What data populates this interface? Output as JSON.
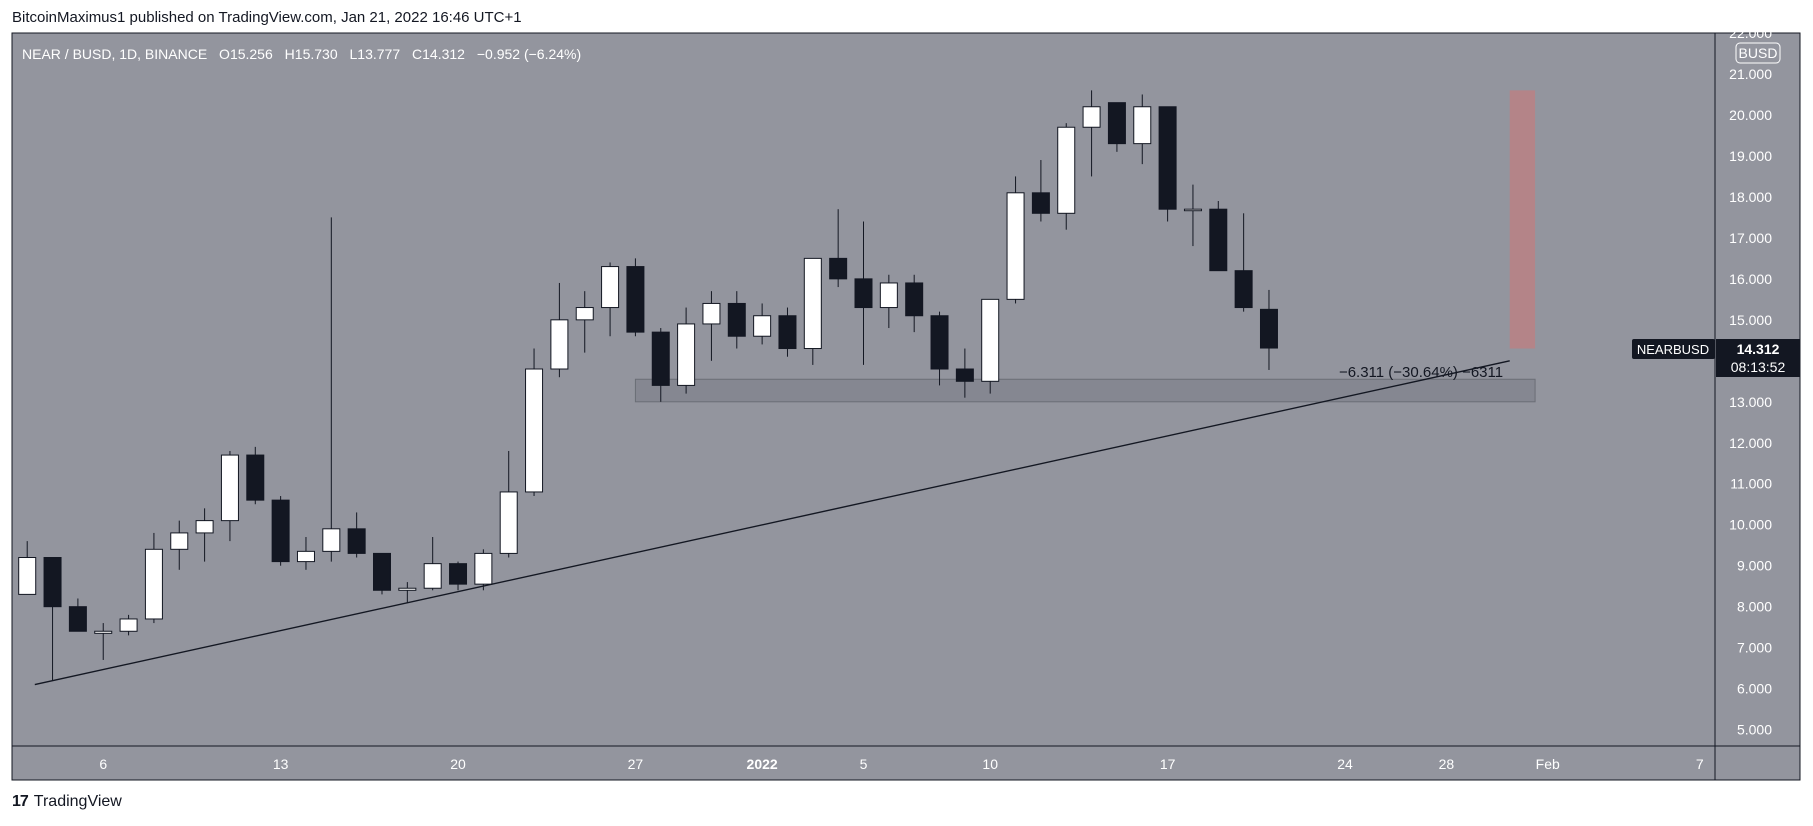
{
  "header": {
    "publisher_line": "BitcoinMaximus1 published on TradingView.com, Jan 21, 2022 16:46 UTC+1"
  },
  "legend": {
    "symbol": "NEAR / BUSD, 1D, BINANCE",
    "o_label": "O",
    "o_value": "15.256",
    "h_label": "H",
    "h_value": "15.730",
    "l_label": "L",
    "l_value": "13.777",
    "c_label": "C",
    "c_value": "14.312",
    "change": "−0.952 (−6.24%)"
  },
  "currency_badge": "BUSD",
  "price_tag": {
    "symbol": "NEARBUSD",
    "price": "14.312",
    "countdown": "08:13:52"
  },
  "measure_label": "−6.311 (−30.64%) −6311",
  "footer": {
    "logo": "17",
    "brand": "TradingView"
  },
  "colors": {
    "plot_bg": "#93959e",
    "bull_body": "#ffffff",
    "bear_body": "#131722",
    "wick": "#131722",
    "support_zone": "#80838c",
    "target_box": "#b48488",
    "price_tag_bg": "#131722",
    "trendline": "#131722"
  },
  "chart_data": {
    "type": "candlestick",
    "title": "",
    "xlabel": "",
    "ylabel": "",
    "ylim": [
      4.6,
      22.0
    ],
    "y_ticks": [
      "22.000",
      "21.000",
      "20.000",
      "19.000",
      "18.000",
      "17.000",
      "16.000",
      "15.000",
      "14.000",
      "13.000",
      "12.000",
      "11.000",
      "10.000",
      "9.000",
      "8.000",
      "7.000",
      "6.000",
      "5.000"
    ],
    "x_ticks": [
      {
        "label": "6",
        "day": -26
      },
      {
        "label": "13",
        "day": -19
      },
      {
        "label": "20",
        "day": -12
      },
      {
        "label": "27",
        "day": -5
      },
      {
        "label": "2022",
        "day": 0
      },
      {
        "label": "5",
        "day": 4
      },
      {
        "label": "10",
        "day": 9
      },
      {
        "label": "17",
        "day": 16
      },
      {
        "label": "24",
        "day": 23
      },
      {
        "label": "28",
        "day": 27
      },
      {
        "label": "Feb",
        "day": 31
      },
      {
        "label": "7",
        "day": 37
      }
    ],
    "x_range_days": [
      -29.6,
      37.6
    ],
    "candles": [
      {
        "date": "2021-12-03",
        "open": 8.3,
        "high": 9.6,
        "low": 8.3,
        "close": 9.2
      },
      {
        "date": "2021-12-04",
        "open": 9.2,
        "high": 9.2,
        "low": 6.2,
        "close": 8.0
      },
      {
        "date": "2021-12-05",
        "open": 8.0,
        "high": 8.2,
        "low": 7.4,
        "close": 7.4
      },
      {
        "date": "2021-12-06",
        "open": 7.35,
        "high": 7.6,
        "low": 6.7,
        "close": 7.4
      },
      {
        "date": "2021-12-07",
        "open": 7.4,
        "high": 7.8,
        "low": 7.3,
        "close": 7.7
      },
      {
        "date": "2021-12-08",
        "open": 7.7,
        "high": 9.8,
        "low": 7.6,
        "close": 9.4
      },
      {
        "date": "2021-12-09",
        "open": 9.4,
        "high": 10.1,
        "low": 8.9,
        "close": 9.8
      },
      {
        "date": "2021-12-10",
        "open": 9.8,
        "high": 10.4,
        "low": 9.1,
        "close": 10.1
      },
      {
        "date": "2021-12-11",
        "open": 10.1,
        "high": 11.8,
        "low": 9.6,
        "close": 11.7
      },
      {
        "date": "2021-12-12",
        "open": 11.7,
        "high": 11.9,
        "low": 10.5,
        "close": 10.6
      },
      {
        "date": "2021-12-13",
        "open": 10.6,
        "high": 10.7,
        "low": 9.0,
        "close": 9.1
      },
      {
        "date": "2021-12-14",
        "open": 9.1,
        "high": 9.7,
        "low": 8.9,
        "close": 9.35
      },
      {
        "date": "2021-12-15",
        "open": 9.35,
        "high": 17.5,
        "low": 9.1,
        "close": 9.9
      },
      {
        "date": "2021-12-16",
        "open": 9.9,
        "high": 10.3,
        "low": 9.2,
        "close": 9.3
      },
      {
        "date": "2021-12-17",
        "open": 9.3,
        "high": 9.3,
        "low": 8.3,
        "close": 8.4
      },
      {
        "date": "2021-12-18",
        "open": 8.4,
        "high": 8.6,
        "low": 8.1,
        "close": 8.45
      },
      {
        "date": "2021-12-19",
        "open": 8.45,
        "high": 9.7,
        "low": 8.4,
        "close": 9.05
      },
      {
        "date": "2021-12-20",
        "open": 9.05,
        "high": 9.1,
        "low": 8.4,
        "close": 8.55
      },
      {
        "date": "2021-12-21",
        "open": 8.55,
        "high": 9.4,
        "low": 8.4,
        "close": 9.3
      },
      {
        "date": "2021-12-22",
        "open": 9.3,
        "high": 11.8,
        "low": 9.2,
        "close": 10.8
      },
      {
        "date": "2021-12-23",
        "open": 10.8,
        "high": 14.3,
        "low": 10.7,
        "close": 13.8
      },
      {
        "date": "2021-12-24",
        "open": 13.8,
        "high": 15.9,
        "low": 13.6,
        "close": 15.0
      },
      {
        "date": "2021-12-25",
        "open": 15.0,
        "high": 15.7,
        "low": 14.2,
        "close": 15.3
      },
      {
        "date": "2021-12-26",
        "open": 15.3,
        "high": 16.4,
        "low": 14.6,
        "close": 16.3
      },
      {
        "date": "2021-12-27",
        "open": 16.3,
        "high": 16.5,
        "low": 14.6,
        "close": 14.7
      },
      {
        "date": "2021-12-28",
        "open": 14.7,
        "high": 14.8,
        "low": 13.0,
        "close": 13.4
      },
      {
        "date": "2021-12-29",
        "open": 13.4,
        "high": 15.3,
        "low": 13.2,
        "close": 14.9
      },
      {
        "date": "2021-12-30",
        "open": 14.9,
        "high": 15.7,
        "low": 14.0,
        "close": 15.4
      },
      {
        "date": "2021-12-31",
        "open": 15.4,
        "high": 15.7,
        "low": 14.3,
        "close": 14.6
      },
      {
        "date": "2022-01-01",
        "open": 14.6,
        "high": 15.4,
        "low": 14.4,
        "close": 15.1
      },
      {
        "date": "2022-01-02",
        "open": 15.1,
        "high": 15.3,
        "low": 14.1,
        "close": 14.3
      },
      {
        "date": "2022-01-03",
        "open": 14.3,
        "high": 16.5,
        "low": 13.9,
        "close": 16.5
      },
      {
        "date": "2022-01-04",
        "open": 16.5,
        "high": 17.7,
        "low": 15.8,
        "close": 16.0
      },
      {
        "date": "2022-01-05",
        "open": 16.0,
        "high": 17.4,
        "low": 13.9,
        "close": 15.3
      },
      {
        "date": "2022-01-06",
        "open": 15.3,
        "high": 16.1,
        "low": 14.8,
        "close": 15.9
      },
      {
        "date": "2022-01-07",
        "open": 15.9,
        "high": 16.1,
        "low": 14.7,
        "close": 15.1
      },
      {
        "date": "2022-01-08",
        "open": 15.1,
        "high": 15.2,
        "low": 13.4,
        "close": 13.8
      },
      {
        "date": "2022-01-09",
        "open": 13.8,
        "high": 14.3,
        "low": 13.1,
        "close": 13.5
      },
      {
        "date": "2022-01-10",
        "open": 13.5,
        "high": 15.5,
        "low": 13.2,
        "close": 15.5
      },
      {
        "date": "2022-01-11",
        "open": 15.5,
        "high": 18.5,
        "low": 15.4,
        "close": 18.1
      },
      {
        "date": "2022-01-12",
        "open": 18.1,
        "high": 18.9,
        "low": 17.4,
        "close": 17.6
      },
      {
        "date": "2022-01-13",
        "open": 17.6,
        "high": 19.8,
        "low": 17.2,
        "close": 19.7
      },
      {
        "date": "2022-01-14",
        "open": 19.7,
        "high": 20.6,
        "low": 18.5,
        "close": 20.2
      },
      {
        "date": "2022-01-15",
        "open": 20.3,
        "high": 20.3,
        "low": 19.1,
        "close": 19.3
      },
      {
        "date": "2022-01-16",
        "open": 19.3,
        "high": 20.5,
        "low": 18.8,
        "close": 20.2
      },
      {
        "date": "2022-01-17",
        "open": 20.2,
        "high": 20.2,
        "low": 17.4,
        "close": 17.7
      },
      {
        "date": "2022-01-18",
        "open": 17.7,
        "high": 18.3,
        "low": 16.8,
        "close": 17.7
      },
      {
        "date": "2022-01-19",
        "open": 17.7,
        "high": 17.9,
        "low": 16.2,
        "close": 16.2
      },
      {
        "date": "2022-01-20",
        "open": 16.2,
        "high": 17.6,
        "low": 15.2,
        "close": 15.3
      },
      {
        "date": "2022-01-21",
        "open": 15.256,
        "high": 15.73,
        "low": 13.777,
        "close": 14.312
      }
    ],
    "trendline": [
      {
        "day": -28.7,
        "value": 6.1
      },
      {
        "day": 29.5,
        "value": 14.0
      }
    ],
    "support_zone": {
      "from_day": -5.0,
      "to_day": 30.5,
      "low": 13.0,
      "high": 13.55
    },
    "target_box": {
      "from_day": 29.5,
      "to_day": 30.5,
      "low": 14.3,
      "high": 20.6
    },
    "measurement": {
      "day": 26.0,
      "value": 13.6
    }
  }
}
